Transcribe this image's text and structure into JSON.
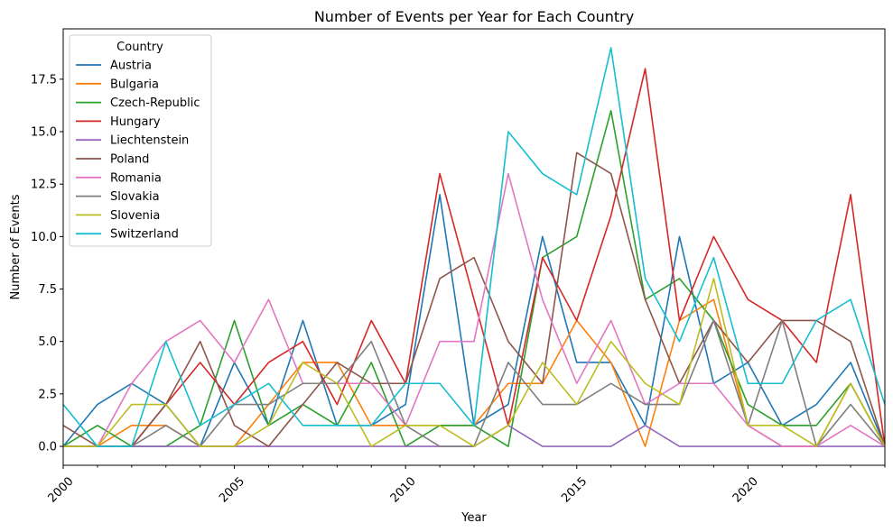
{
  "chart_data": {
    "type": "line",
    "title": "Number of Events per Year for Each Country",
    "xlabel": "Year",
    "ylabel": "Number of Events",
    "xlim": [
      2000,
      2024
    ],
    "ylim": [
      -0.9,
      19.9
    ],
    "x_ticks": [
      2000,
      2005,
      2010,
      2015,
      2020
    ],
    "y_ticks": [
      0.0,
      2.5,
      5.0,
      7.5,
      10.0,
      12.5,
      15.0,
      17.5
    ],
    "y_tick_labels": [
      "0.0",
      "2.5",
      "5.0",
      "7.5",
      "10.0",
      "12.5",
      "15.0",
      "17.5"
    ],
    "grid": false,
    "legend": {
      "title": "Country",
      "placement": "upper-left"
    },
    "x": [
      2000,
      2001,
      2002,
      2003,
      2004,
      2005,
      2006,
      2007,
      2008,
      2009,
      2010,
      2011,
      2012,
      2013,
      2014,
      2015,
      2016,
      2017,
      2018,
      2019,
      2020,
      2021,
      2022,
      2023,
      2024
    ],
    "series": [
      {
        "name": "Austria",
        "color": "#1f77b4",
        "values": [
          0,
          2,
          3,
          2,
          0,
          4,
          1,
          6,
          1,
          1,
          2,
          12,
          1,
          2,
          10,
          4,
          4,
          1,
          10,
          3,
          4,
          1,
          2,
          4,
          0
        ]
      },
      {
        "name": "Bulgaria",
        "color": "#ff7f0e",
        "values": [
          0,
          0,
          1,
          1,
          0,
          0,
          2,
          4,
          4,
          1,
          1,
          1,
          1,
          3,
          3,
          6,
          4,
          0,
          6,
          7,
          1,
          0,
          0,
          3,
          0
        ]
      },
      {
        "name": "Czech-Republic",
        "color": "#2ca02c",
        "values": [
          0,
          1,
          0,
          0,
          1,
          6,
          1,
          2,
          1,
          4,
          0,
          1,
          1,
          0,
          9,
          10,
          16,
          7,
          8,
          6,
          2,
          1,
          1,
          3,
          0
        ]
      },
      {
        "name": "Hungary",
        "color": "#d62728",
        "values": [
          0,
          0,
          0,
          2,
          4,
          2,
          4,
          5,
          2,
          6,
          3,
          13,
          7,
          1,
          9,
          6,
          11,
          18,
          6,
          10,
          7,
          6,
          4,
          12,
          0
        ]
      },
      {
        "name": "Liechtenstein",
        "color": "#9467bd",
        "values": [
          0,
          0,
          0,
          0,
          0,
          0,
          0,
          0,
          0,
          0,
          0,
          0,
          0,
          1,
          0,
          0,
          0,
          1,
          0,
          0,
          0,
          0,
          0,
          0,
          0
        ]
      },
      {
        "name": "Poland",
        "color": "#8c564b",
        "values": [
          1,
          0,
          0,
          2,
          5,
          1,
          0,
          2,
          4,
          3,
          3,
          8,
          9,
          5,
          3,
          14,
          13,
          7,
          3,
          6,
          4,
          6,
          6,
          5,
          0
        ]
      },
      {
        "name": "Romania",
        "color": "#e377c2",
        "values": [
          0,
          0,
          3,
          5,
          6,
          4,
          7,
          3,
          3,
          3,
          1,
          5,
          5,
          13,
          7,
          3,
          6,
          2,
          3,
          3,
          1,
          0,
          0,
          1,
          0
        ]
      },
      {
        "name": "Slovakia",
        "color": "#7f7f7f",
        "values": [
          0,
          0,
          0,
          1,
          0,
          2,
          2,
          3,
          3,
          5,
          1,
          0,
          0,
          4,
          2,
          2,
          3,
          2,
          2,
          6,
          1,
          6,
          0,
          2,
          0
        ]
      },
      {
        "name": "Slovenia",
        "color": "#bcbd22",
        "values": [
          0,
          0,
          2,
          2,
          0,
          0,
          1,
          4,
          3,
          0,
          1,
          1,
          0,
          1,
          4,
          2,
          5,
          3,
          2,
          8,
          1,
          1,
          0,
          3,
          0
        ]
      },
      {
        "name": "Switzerland",
        "color": "#17becf",
        "values": [
          2,
          0,
          0,
          5,
          1,
          2,
          3,
          1,
          1,
          1,
          3,
          3,
          1,
          15,
          13,
          12,
          19,
          8,
          5,
          9,
          3,
          3,
          6,
          7,
          2
        ]
      }
    ]
  }
}
